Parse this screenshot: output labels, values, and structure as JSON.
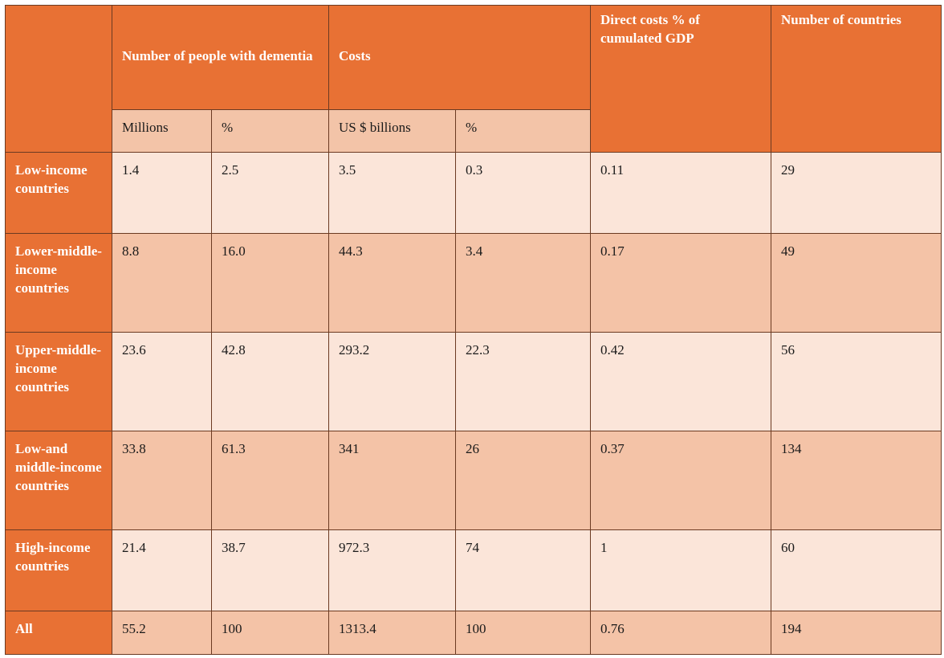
{
  "header": {
    "people": "Number of people with dementia",
    "costs": "Costs",
    "gdp": "Direct costs % of cumulated GDP",
    "countries": "Number of countries"
  },
  "subheader": {
    "millions": "Millions",
    "pct1": "%",
    "usd": "US $ billions",
    "pct2": "%"
  },
  "rows": [
    {
      "label": "Low-income countries",
      "millions": "1.4",
      "pct1": "2.5",
      "usd": "3.5",
      "pct2": "0.3",
      "gdp": "0.11",
      "countries": "29"
    },
    {
      "label": "Lower-middle-income countries",
      "millions": "8.8",
      "pct1": "16.0",
      "usd": "44.3",
      "pct2": "3.4",
      "gdp": "0.17",
      "countries": "49"
    },
    {
      "label": "Upper-middle-income countries",
      "millions": "23.6",
      "pct1": "42.8",
      "usd": "293.2",
      "pct2": "22.3",
      "gdp": "0.42",
      "countries": "56"
    },
    {
      "label": "Low-and middle-income countries",
      "millions": "33.8",
      "pct1": "61.3",
      "usd": "341",
      "pct2": "26",
      "gdp": "0.37",
      "countries": "134"
    },
    {
      "label": "High-income countries",
      "millions": "21.4",
      "pct1": "38.7",
      "usd": "972.3",
      "pct2": "74",
      "gdp": "1",
      "countries": "60"
    },
    {
      "label": "All",
      "millions": "55.2",
      "pct1": "100",
      "usd": "1313.4",
      "pct2": "100",
      "gdp": "0.76",
      "countries": "194"
    }
  ],
  "colors": {
    "header": "#e87134",
    "light_row": "#fbe5d9",
    "dark_row": "#f4c3a7",
    "border": "#6b3a22"
  }
}
